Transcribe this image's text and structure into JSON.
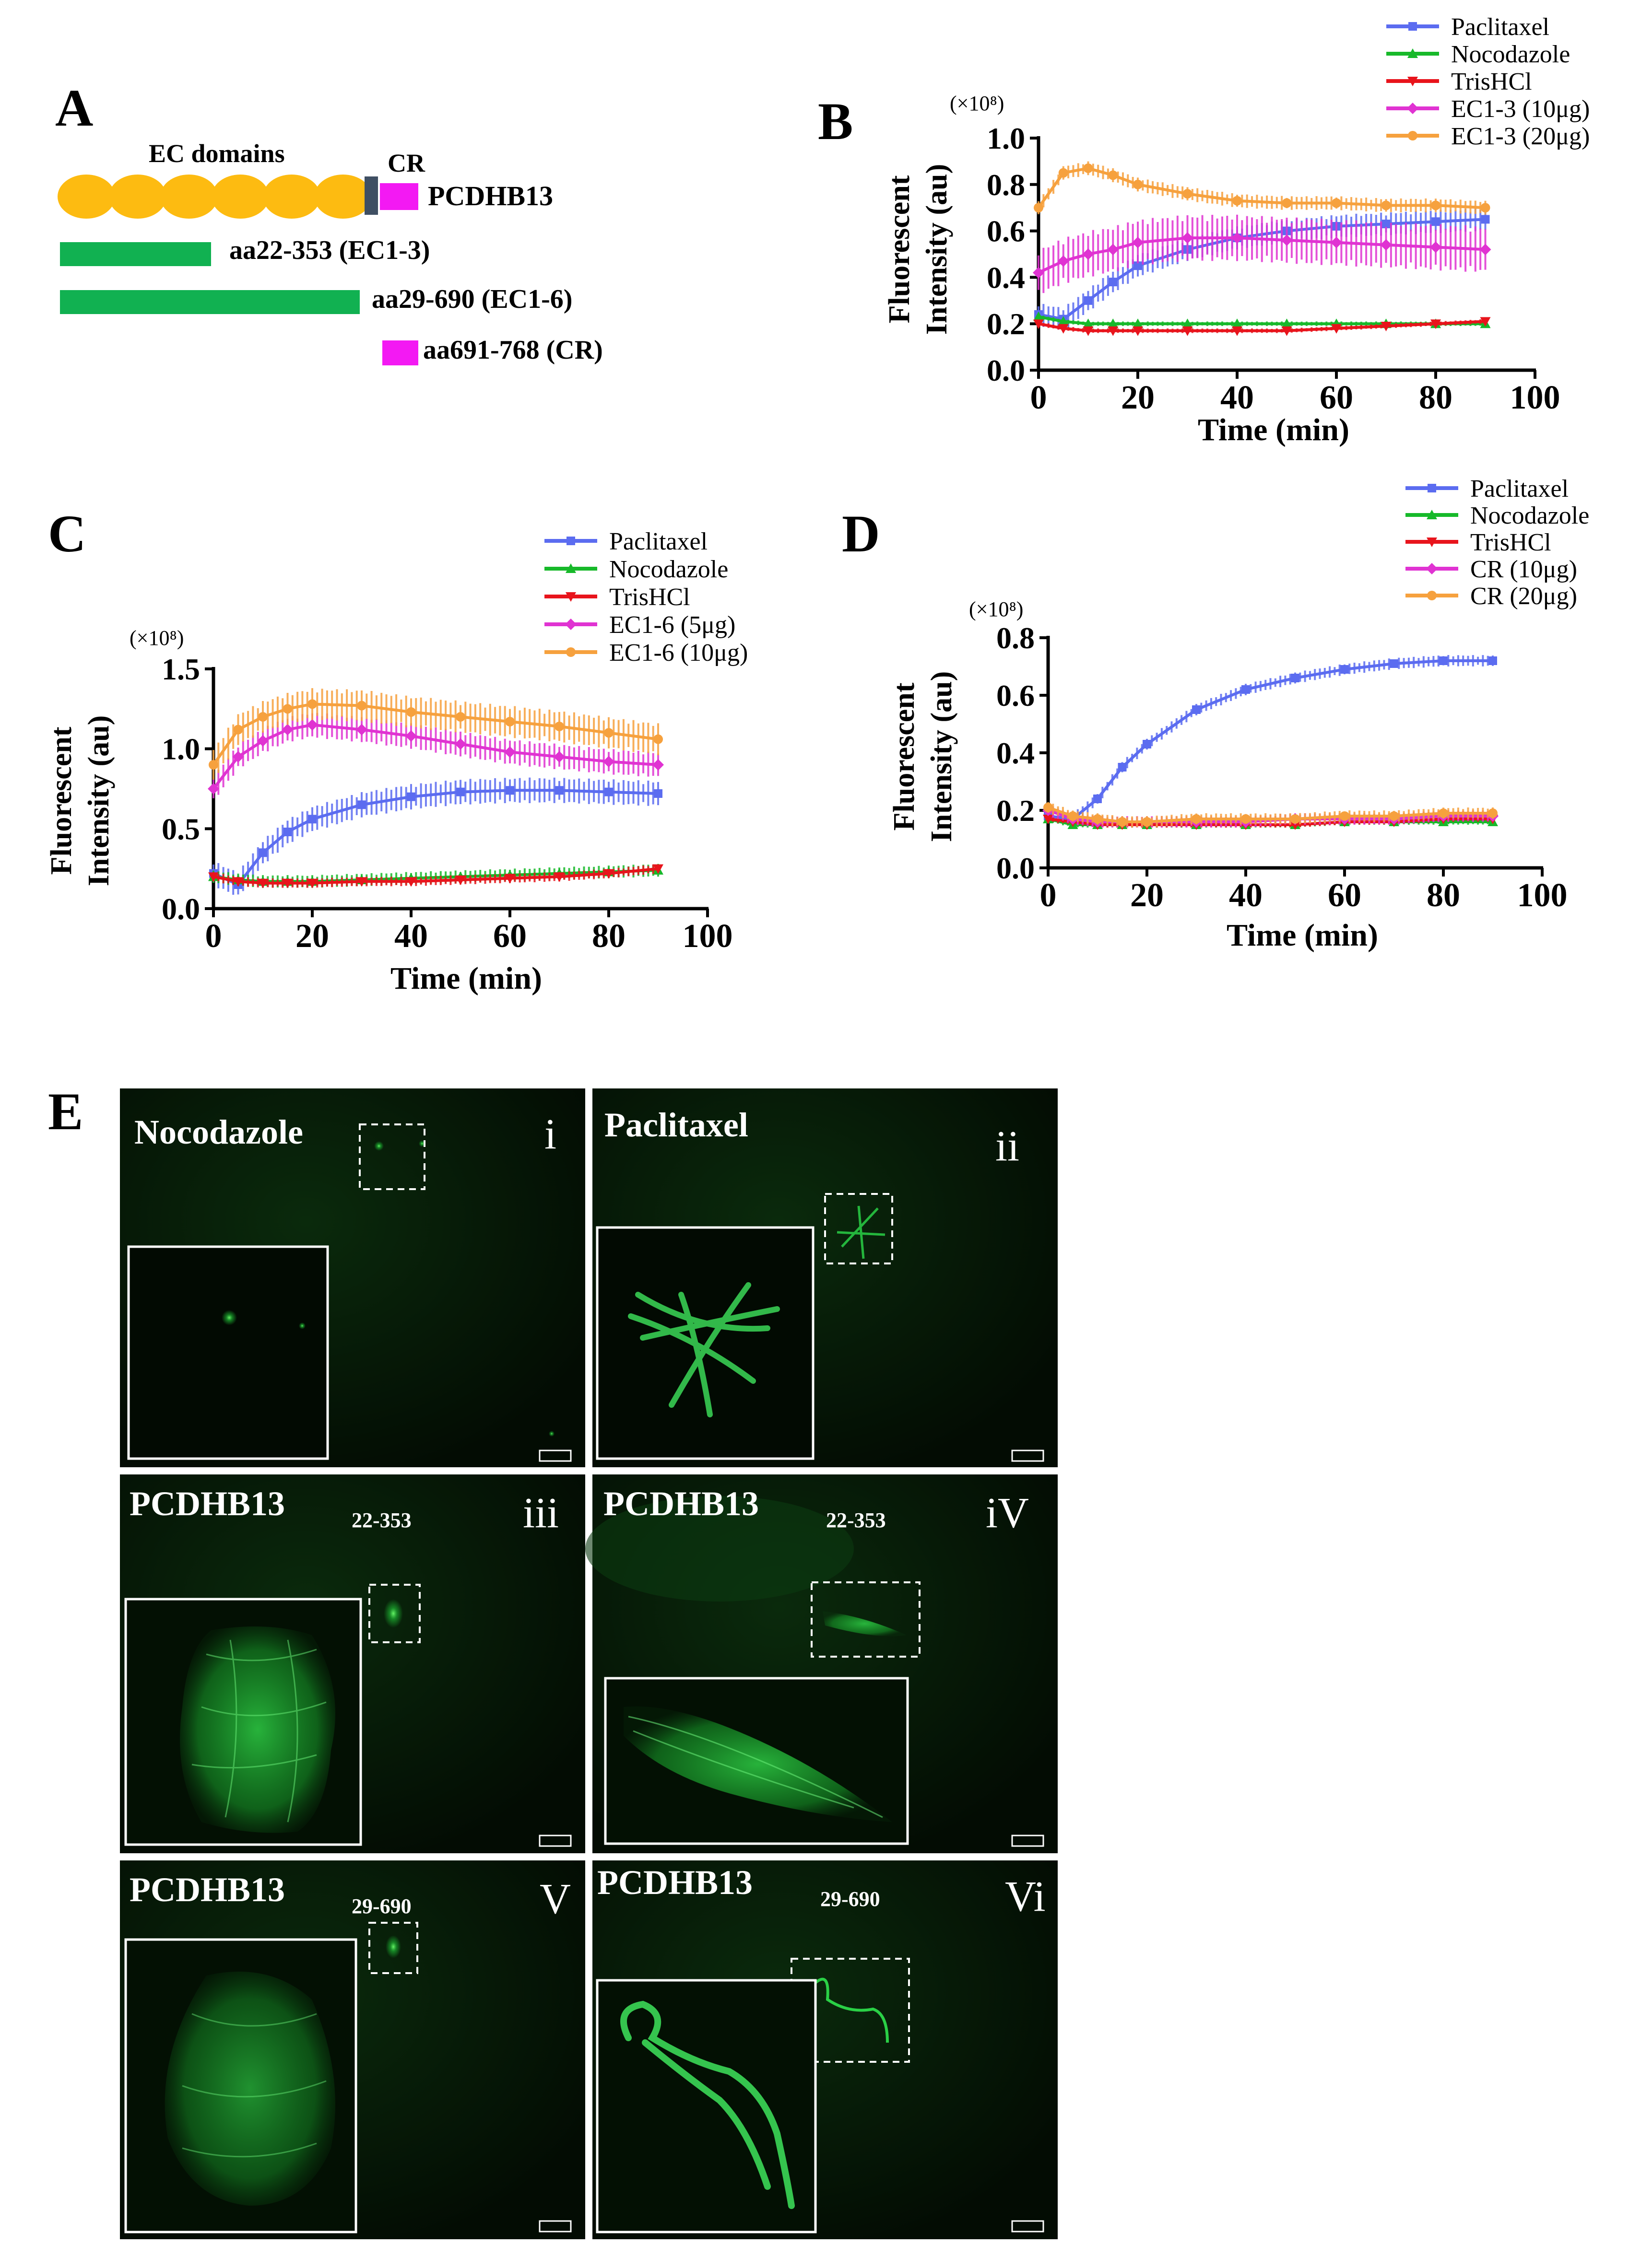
{
  "panel_letters": [
    "A",
    "B",
    "C",
    "D",
    "E"
  ],
  "panel_a": {
    "ec_label": "EC domains",
    "cr_label": "CR",
    "protein_label": "PCDHB13",
    "constructs": [
      "aa22-353 (EC1-3)",
      "aa29-690 (EC1-6)",
      "aa691-768 (CR)"
    ],
    "colors": {
      "ec": "#FDBB11",
      "tm": "#3F4F63",
      "cr": "#F319F3",
      "construct": "#11B151"
    }
  },
  "axes_text": {
    "ylabel_line1": "Fluorescent",
    "ylabel_line2": "Intensity (au)",
    "xlabel": "Time (min)",
    "multiplier": "(×10⁸)"
  },
  "chart_data": [
    {
      "panel": "B",
      "type": "line",
      "title": "",
      "xlabel": "Time (min)",
      "ylabel": "Fluorescent Intensity (au)",
      "y_multiplier": "(×10⁸)",
      "xlim": [
        0,
        100
      ],
      "ylim": [
        0.0,
        1.0
      ],
      "x_ticks": [
        "0",
        "20",
        "40",
        "60",
        "80",
        "100"
      ],
      "y_ticks": [
        "0.0",
        "0.2",
        "0.4",
        "0.6",
        "0.8",
        "1.0"
      ],
      "x": [
        0,
        5,
        10,
        15,
        20,
        30,
        40,
        50,
        60,
        70,
        80,
        90
      ],
      "series": [
        {
          "name": "Paclitaxel",
          "color": "#5B6CF0",
          "err": 0.05,
          "values": [
            0.24,
            0.22,
            0.3,
            0.38,
            0.45,
            0.52,
            0.57,
            0.6,
            0.62,
            0.63,
            0.64,
            0.65
          ]
        },
        {
          "name": "Nocodazole",
          "color": "#17B92A",
          "err": 0.01,
          "values": [
            0.23,
            0.21,
            0.2,
            0.2,
            0.2,
            0.2,
            0.2,
            0.2,
            0.2,
            0.2,
            0.2,
            0.2
          ]
        },
        {
          "name": "TrisHCl",
          "color": "#E8141C",
          "err": 0.01,
          "values": [
            0.2,
            0.18,
            0.17,
            0.17,
            0.17,
            0.17,
            0.17,
            0.17,
            0.18,
            0.19,
            0.2,
            0.21
          ]
        },
        {
          "name": "EC1-3 (10μg)",
          "color": "#E033D2",
          "err": 0.1,
          "values": [
            0.42,
            0.47,
            0.5,
            0.52,
            0.55,
            0.57,
            0.57,
            0.56,
            0.55,
            0.54,
            0.53,
            0.52
          ]
        },
        {
          "name": "EC1-3 (20μg)",
          "color": "#F6A13E",
          "err": 0.03,
          "values": [
            0.7,
            0.85,
            0.87,
            0.84,
            0.8,
            0.76,
            0.73,
            0.72,
            0.72,
            0.71,
            0.71,
            0.7
          ]
        }
      ]
    },
    {
      "panel": "C",
      "type": "line",
      "title": "",
      "xlabel": "Time (min)",
      "ylabel": "Fluorescent Intensity (au)",
      "y_multiplier": "(×10⁸)",
      "xlim": [
        0,
        100
      ],
      "ylim": [
        0.0,
        1.5
      ],
      "x_ticks": [
        "0",
        "20",
        "40",
        "60",
        "80",
        "100"
      ],
      "y_ticks": [
        "0.0",
        "0.5",
        "1.0",
        "1.5"
      ],
      "x": [
        0,
        5,
        10,
        15,
        20,
        30,
        40,
        50,
        60,
        70,
        80,
        90
      ],
      "series": [
        {
          "name": "Paclitaxel",
          "color": "#5B6CF0",
          "err": 0.08,
          "values": [
            0.22,
            0.15,
            0.35,
            0.48,
            0.56,
            0.65,
            0.7,
            0.73,
            0.74,
            0.74,
            0.73,
            0.72
          ]
        },
        {
          "name": "Nocodazole",
          "color": "#17B92A",
          "err": 0.04,
          "values": [
            0.2,
            0.18,
            0.17,
            0.17,
            0.17,
            0.18,
            0.19,
            0.2,
            0.21,
            0.22,
            0.23,
            0.24
          ]
        },
        {
          "name": "TrisHCl",
          "color": "#E8141C",
          "err": 0.03,
          "values": [
            0.2,
            0.17,
            0.16,
            0.16,
            0.16,
            0.17,
            0.17,
            0.18,
            0.19,
            0.2,
            0.22,
            0.25
          ]
        },
        {
          "name": "EC1-6 (5μg)",
          "color": "#E033D2",
          "err": 0.08,
          "values": [
            0.75,
            0.95,
            1.05,
            1.12,
            1.15,
            1.12,
            1.08,
            1.03,
            0.98,
            0.95,
            0.92,
            0.9
          ]
        },
        {
          "name": "EC1-6 (10μg)",
          "color": "#F6A13E",
          "err": 0.1,
          "values": [
            0.9,
            1.12,
            1.2,
            1.25,
            1.28,
            1.27,
            1.23,
            1.2,
            1.17,
            1.14,
            1.1,
            1.06
          ]
        }
      ]
    },
    {
      "panel": "D",
      "type": "line",
      "title": "",
      "xlabel": "Time (min)",
      "ylabel": "Fluorescent Intensity (au)",
      "y_multiplier": "(×10⁸)",
      "xlim": [
        0,
        100
      ],
      "ylim": [
        0.0,
        0.8
      ],
      "x_ticks": [
        "0",
        "20",
        "40",
        "60",
        "80",
        "100"
      ],
      "y_ticks": [
        "0.0",
        "0.2",
        "0.4",
        "0.6",
        "0.8"
      ],
      "x": [
        0,
        5,
        10,
        15,
        20,
        30,
        40,
        50,
        60,
        70,
        80,
        90
      ],
      "series": [
        {
          "name": "Paclitaxel",
          "color": "#5B6CF0",
          "err": 0.02,
          "values": [
            0.18,
            0.17,
            0.24,
            0.35,
            0.43,
            0.55,
            0.62,
            0.66,
            0.69,
            0.71,
            0.72,
            0.72
          ]
        },
        {
          "name": "Nocodazole",
          "color": "#17B92A",
          "err": 0.01,
          "values": [
            0.17,
            0.15,
            0.15,
            0.15,
            0.15,
            0.15,
            0.15,
            0.15,
            0.16,
            0.16,
            0.16,
            0.16
          ]
        },
        {
          "name": "TrisHCl",
          "color": "#E8141C",
          "err": 0.01,
          "values": [
            0.17,
            0.16,
            0.15,
            0.15,
            0.15,
            0.15,
            0.15,
            0.15,
            0.16,
            0.16,
            0.17,
            0.17
          ]
        },
        {
          "name": "CR (10μg)",
          "color": "#E033D2",
          "err": 0.02,
          "values": [
            0.2,
            0.17,
            0.16,
            0.16,
            0.16,
            0.16,
            0.16,
            0.17,
            0.17,
            0.17,
            0.18,
            0.18
          ]
        },
        {
          "name": "CR (20μg)",
          "color": "#F6A13E",
          "err": 0.02,
          "values": [
            0.21,
            0.18,
            0.17,
            0.16,
            0.16,
            0.17,
            0.17,
            0.17,
            0.18,
            0.18,
            0.19,
            0.19
          ]
        }
      ]
    }
  ],
  "micrographs": [
    {
      "roman": "i",
      "label": "Nocodazole",
      "sub": ""
    },
    {
      "roman": "ii",
      "label": "Paclitaxel",
      "sub": ""
    },
    {
      "roman": "iii",
      "label": "PCDHB13",
      "sub": "22-353"
    },
    {
      "roman": "iV",
      "label": "PCDHB13",
      "sub": "22-353"
    },
    {
      "roman": "V",
      "label": "PCDHB13",
      "sub": "29-690"
    },
    {
      "roman": "Vi",
      "label": "PCDHB13",
      "sub": "29-690"
    }
  ],
  "micrograph_colors": {
    "background": "#041204",
    "glow": "#1FC436",
    "bright": "#6BFF6B"
  }
}
